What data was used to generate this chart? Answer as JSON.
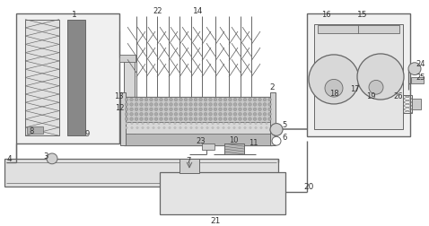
{
  "fig_width": 4.78,
  "fig_height": 2.52,
  "dpi": 100,
  "lc": "#666666",
  "lc2": "#888888",
  "fc_light": "#e8e8e8",
  "fc_mid": "#cccccc",
  "fc_dark": "#999999",
  "fc_darkest": "#666666"
}
